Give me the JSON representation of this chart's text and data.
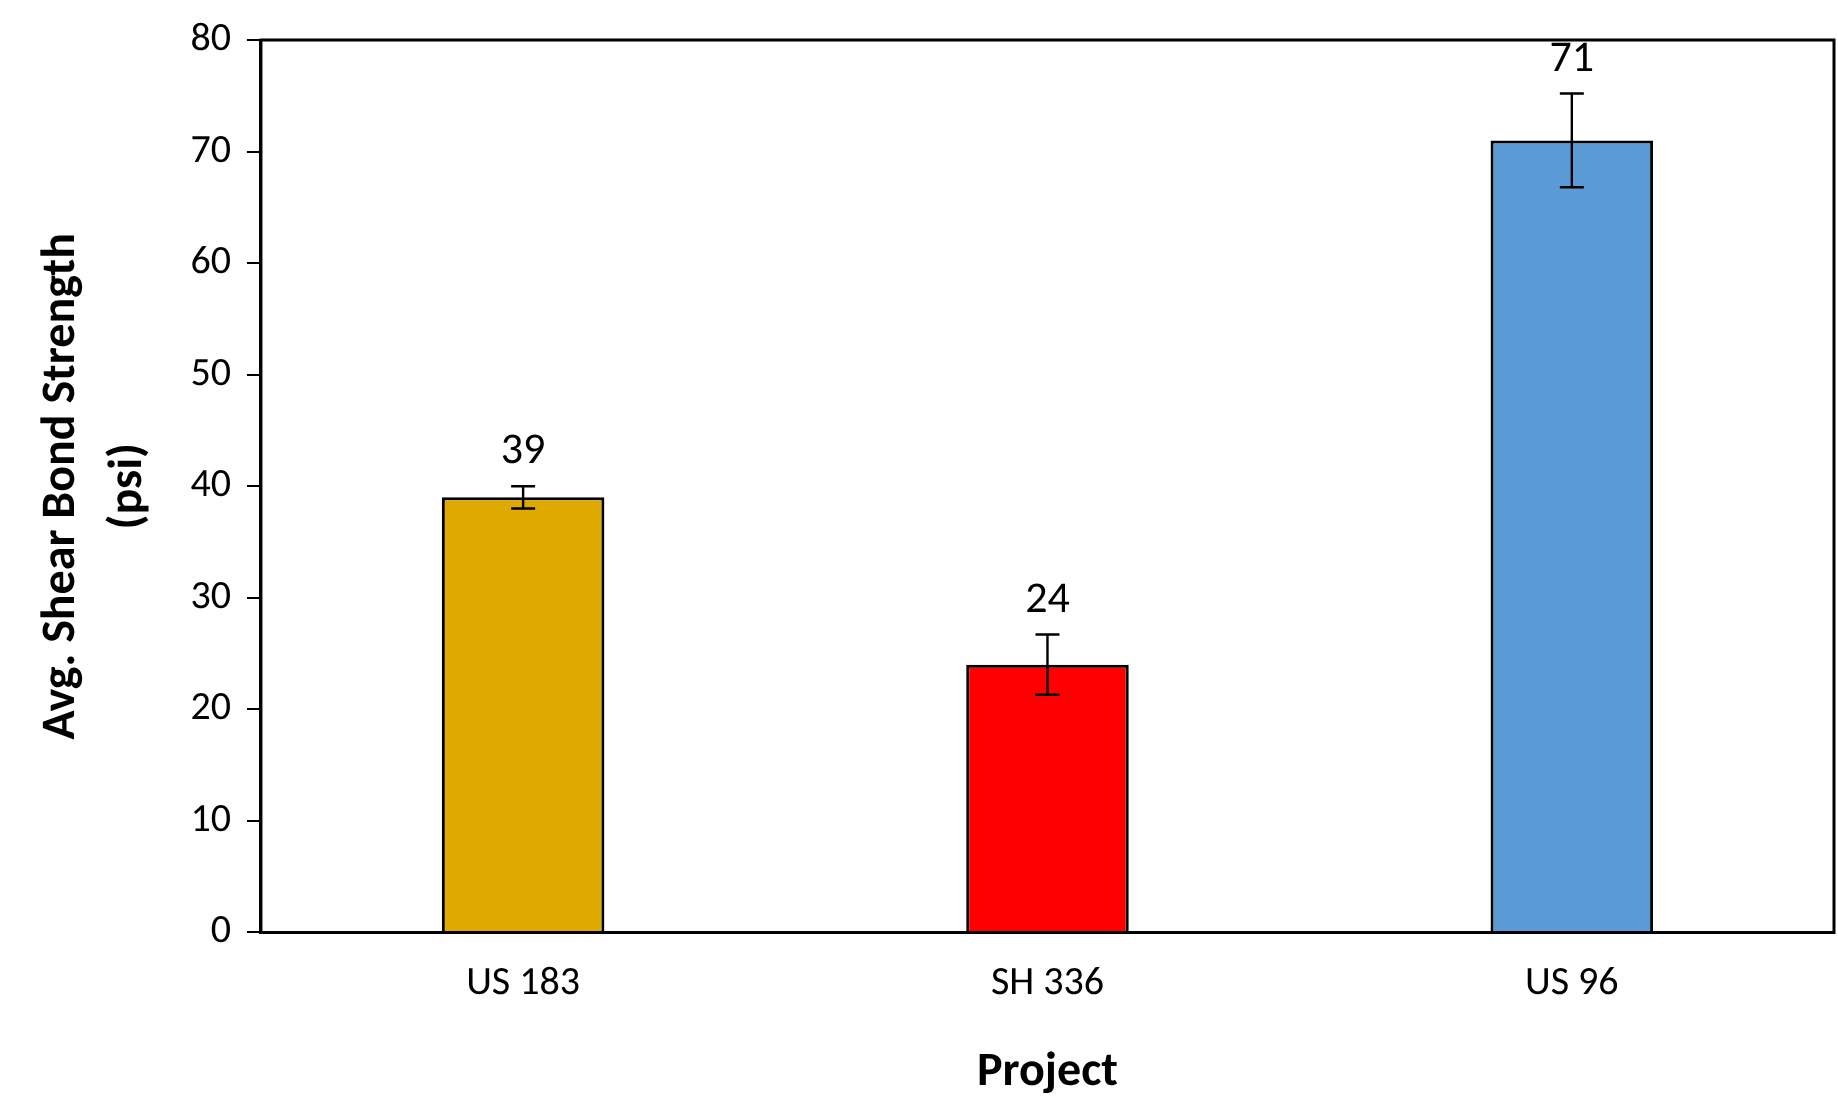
{
  "chart_data": {
    "type": "bar",
    "xlabel": "Project",
    "ylabel": "Avg. Shear Bond Strength\n(psi)",
    "categories": [
      "US 183",
      "SH 336",
      "US 96"
    ],
    "values": [
      39,
      24,
      71
    ],
    "colors": [
      "#dea900",
      "#ff0000",
      "#5b9bd5"
    ],
    "errors": [
      1,
      2.7,
      4.2
    ],
    "data_labels": true,
    "ylim": [
      0,
      80
    ],
    "yticks": [
      0,
      10,
      20,
      30,
      40,
      50,
      60,
      70,
      80
    ],
    "grid": false,
    "legend": false
  }
}
